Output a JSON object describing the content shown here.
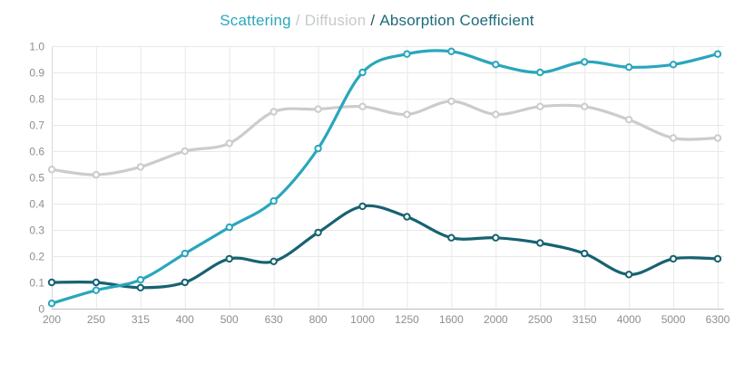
{
  "header": {
    "title_parts": [
      {
        "label": "Scattering",
        "color": "#2ba7bd",
        "role": "series-toggle",
        "key": "scattering"
      },
      {
        "label": "/",
        "color": "#c6cacc",
        "role": "separator"
      },
      {
        "label": "Diffusion",
        "color": "#c6cacc",
        "role": "series-toggle",
        "key": "diffusion"
      },
      {
        "label": "/",
        "color": "#2c5564",
        "role": "separator"
      },
      {
        "label": "Absorption Coefficient",
        "color": "#1d6b7b",
        "role": "series-toggle",
        "key": "absorption"
      }
    ]
  },
  "chart_data": {
    "type": "line",
    "title": "Scattering / Diffusion / Absorption Coefficient",
    "xlabel": "",
    "ylabel": "",
    "x_tick_labels": [
      "200",
      "250",
      "315",
      "400",
      "500",
      "630",
      "800",
      "1000",
      "1250",
      "1600",
      "2000",
      "2500",
      "3150",
      "4000",
      "5000",
      "6300"
    ],
    "y_tick_labels": [
      "1.0",
      "0.9",
      "0.8",
      "0.7",
      "0.6",
      "0.5",
      "0.4",
      "0.3",
      "0.2",
      "0.1",
      "0"
    ],
    "ylim": [
      0,
      1.0
    ],
    "grid": true,
    "line_style": "smooth",
    "marker": "open-circle",
    "legend_position": "title-inline",
    "categories": [
      200,
      250,
      315,
      400,
      500,
      630,
      800,
      1000,
      1250,
      1600,
      2000,
      2500,
      3150,
      4000,
      5000,
      6300
    ],
    "series": [
      {
        "name": "Scattering",
        "color": "#29a6bc",
        "values": [
          0.02,
          0.07,
          0.11,
          0.21,
          0.31,
          0.41,
          0.61,
          0.9,
          0.97,
          0.98,
          0.93,
          0.9,
          0.94,
          0.92,
          0.93,
          0.97
        ]
      },
      {
        "name": "Diffusion",
        "color": "#cccccc",
        "values": [
          0.53,
          0.51,
          0.54,
          0.6,
          0.63,
          0.75,
          0.76,
          0.77,
          0.74,
          0.79,
          0.74,
          0.77,
          0.77,
          0.72,
          0.65,
          0.65
        ]
      },
      {
        "name": "Absorption Coefficient",
        "color": "#176271",
        "values": [
          0.1,
          0.1,
          0.08,
          0.1,
          0.19,
          0.18,
          0.29,
          0.39,
          0.35,
          0.27,
          0.27,
          0.25,
          0.21,
          0.13,
          0.19,
          0.19
        ]
      }
    ],
    "colors": {
      "grid": "#e8e8e8",
      "axis_line": "#b9bcbe",
      "y_axis_line": "#d9d9d9",
      "tick_label": "#8e8e8e",
      "marker_fill": "#ffffff"
    }
  }
}
